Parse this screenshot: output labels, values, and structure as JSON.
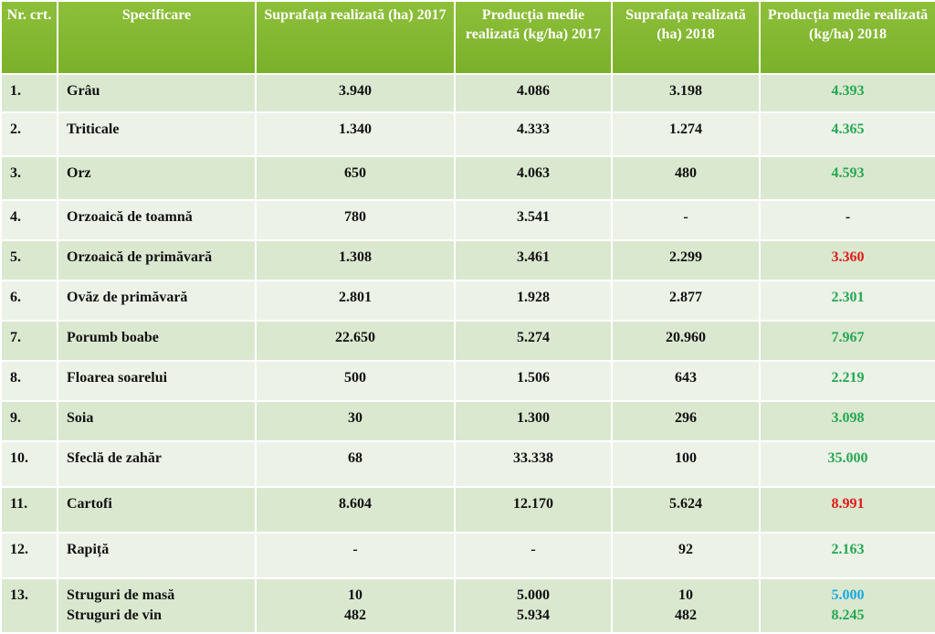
{
  "colors": {
    "header": "#7bb12a",
    "green": "#26a752",
    "red": "#e01a1a",
    "blue": "#19a8e0"
  },
  "headers": [
    "Nr. crt.",
    "Specificare",
    "Suprafața realizată (ha) 2017",
    "Producția medie realizată (kg/ha) 2017",
    "Suprafața realizată (ha) 2018",
    "Producția medie realizată  (kg/ha) 2018"
  ],
  "rows": [
    {
      "nr": "1.",
      "spec": "Grâu",
      "s2017": "3.940",
      "p2017": "4.086",
      "s2018": "3.198",
      "p2018": "4.393"
    },
    {
      "nr": "2.",
      "spec": "Triticale",
      "s2017": "1.340",
      "p2017": "4.333",
      "s2018": "1.274",
      "p2018": "4.365"
    },
    {
      "nr": "3.",
      "spec": "Orz",
      "s2017": "650",
      "p2017": "4.063",
      "s2018": "480",
      "p2018": "4.593"
    },
    {
      "nr": "4.",
      "spec": "Orzoaică de toamnă",
      "s2017": "780",
      "p2017": "3.541",
      "s2018": "-",
      "p2018": "-"
    },
    {
      "nr": "5.",
      "spec": "Orzoaică de primăvară",
      "s2017": "1.308",
      "p2017": "3.461",
      "s2018": "2.299",
      "p2018": "3.360"
    },
    {
      "nr": "6.",
      "spec": "Ovăz de  primăvară",
      "s2017": "2.801",
      "p2017": "1.928",
      "s2018": "2.877",
      "p2018": "2.301"
    },
    {
      "nr": "7.",
      "spec": "Porumb boabe",
      "s2017": "22.650",
      "p2017": "5.274",
      "s2018": "20.960",
      "p2018": "7.967"
    },
    {
      "nr": "8.",
      "spec": "Floarea soarelui",
      "s2017": "500",
      "p2017": "1.506",
      "s2018": "643",
      "p2018": "2.219"
    },
    {
      "nr": "9.",
      "spec": "Soia",
      "s2017": "30",
      "p2017": "1.300",
      "s2018": "296",
      "p2018": "3.098"
    },
    {
      "nr": "10.",
      "spec": "Sfeclă de zahăr",
      "s2017": "68",
      "p2017": "33.338",
      "s2018": "100",
      "p2018": "35.000"
    },
    {
      "nr": "11.",
      "spec": "Cartofi",
      "s2017": "8.604",
      "p2017": "12.170",
      "s2018": "5.624",
      "p2018": "8.991"
    },
    {
      "nr": "12.",
      "spec": "Rapiță",
      "s2017": "-",
      "p2017": "-",
      "s2018": "92",
      "p2018": "2.163"
    },
    {
      "nr": "13.",
      "spec": "Struguri de masă",
      "spec2": "Struguri de vin",
      "s2017": "10",
      "s2017b": "482",
      "p2017": "5.000",
      "p2017b": "5.934",
      "s2018": "10",
      "s2018b": "482",
      "p2018": "5.000",
      "p2018b": "8.245"
    }
  ]
}
